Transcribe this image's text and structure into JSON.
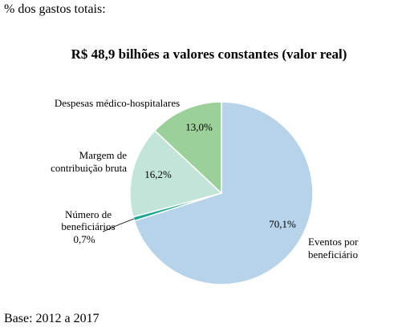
{
  "header": {
    "note": "% dos gastos totais:"
  },
  "footer": {
    "note": "Base: 2012 a 2017"
  },
  "chart_data": {
    "type": "pie",
    "title": "R$ 48,9 bilhões a valores constantes (valor real)",
    "slices": [
      {
        "key": "eventos",
        "label_lines": [
          "Eventos por",
          "beneficiário"
        ],
        "value": 70.1,
        "value_label": "70,1%",
        "color": "#b7d3e9"
      },
      {
        "key": "numero",
        "label_lines": [
          "Número de",
          "beneficiários"
        ],
        "value": 0.7,
        "value_label": "0,7%",
        "color": "#1aa690"
      },
      {
        "key": "margem",
        "label_lines": [
          "Margem de",
          "contribuição bruta"
        ],
        "value": 16.2,
        "value_label": "16,2%",
        "color": "#c3e4d9"
      },
      {
        "key": "despesas",
        "label_lines": [
          "Despesas médico-hospitalares"
        ],
        "value": 13.0,
        "value_label": "13,0%",
        "color": "#9bd09a"
      }
    ]
  }
}
